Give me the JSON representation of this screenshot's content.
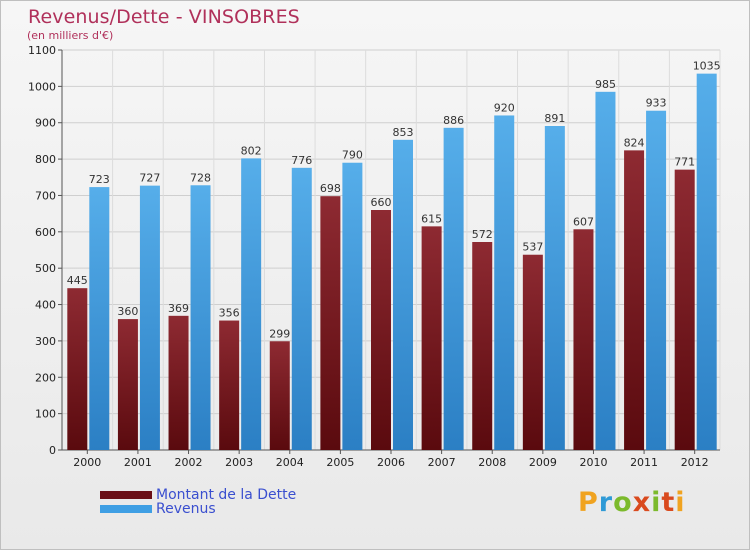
{
  "chart_data": {
    "type": "bar",
    "title": "Revenus/Dette - VINSOBRES",
    "subtitle": "(en milliers d'€)",
    "xlabel": "",
    "ylabel": "",
    "categories": [
      "2000",
      "2001",
      "2002",
      "2003",
      "2004",
      "2005",
      "2006",
      "2007",
      "2008",
      "2009",
      "2010",
      "2011",
      "2012"
    ],
    "series": [
      {
        "name": "Montant de la Dette",
        "color": "#8b1c24",
        "values": [
          445,
          360,
          369,
          356,
          299,
          698,
          660,
          615,
          572,
          537,
          607,
          824,
          771
        ]
      },
      {
        "name": "Revenus",
        "color": "#3f9fe4",
        "values": [
          723,
          727,
          728,
          802,
          776,
          790,
          853,
          886,
          920,
          891,
          985,
          933,
          1035
        ]
      }
    ],
    "ylim": [
      0,
      1100
    ],
    "yticks": [
      0,
      100,
      200,
      300,
      400,
      500,
      600,
      700,
      800,
      900,
      1000,
      1100
    ],
    "grid": true,
    "legend": "bottom-left"
  },
  "brand": {
    "text": "Proxiti",
    "letters": [
      "P",
      "r",
      "o",
      "x",
      "i",
      "t",
      "i"
    ]
  }
}
